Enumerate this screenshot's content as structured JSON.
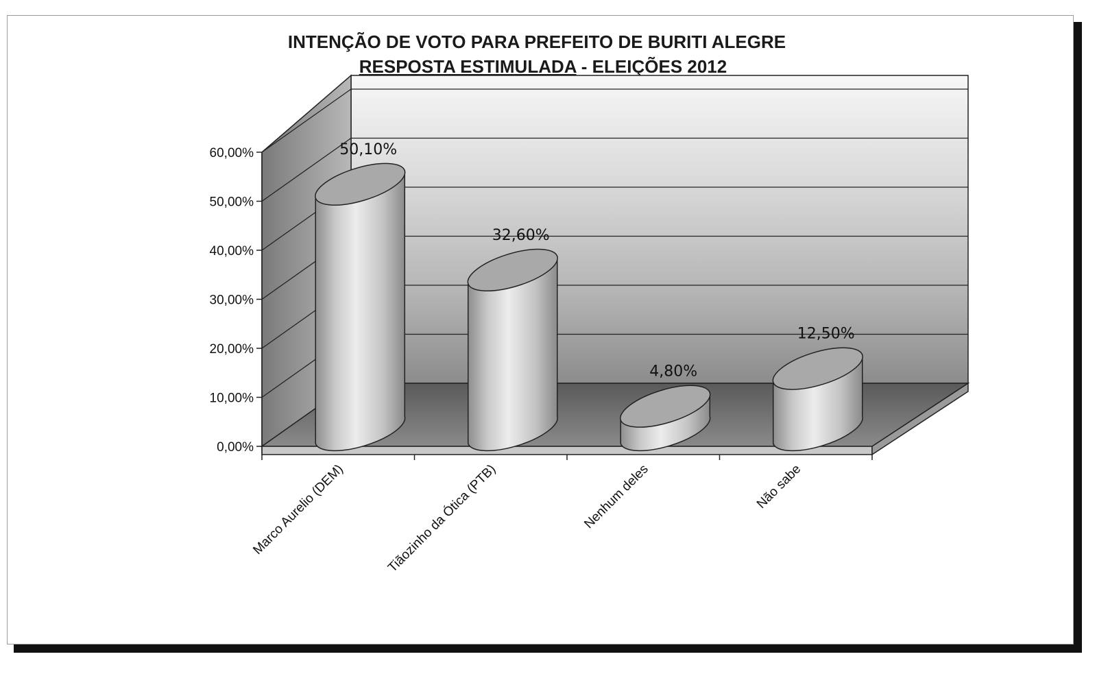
{
  "chart_data": {
    "type": "bar",
    "title": "INTENÇÃO DE VOTO PARA PREFEITO DE  BURITI ALEGRE",
    "subtitle_underlined": "RESPOSTA ESTIMULADA",
    "subtitle_rest": " - ELEIÇÕES 2012",
    "categories": [
      "Marco Aurelio (DEM)",
      "Tiãozinho da Ótica (PTB)",
      "Nenhum deles",
      "Não sabe"
    ],
    "values": [
      50.1,
      32.6,
      4.8,
      12.5
    ],
    "data_labels": [
      "50,10%",
      "32,60%",
      "4,80%",
      "12,50%"
    ],
    "yticks": [
      0,
      10,
      20,
      30,
      40,
      50,
      60
    ],
    "ytick_labels": [
      "0,00%",
      "10,00%",
      "20,00%",
      "30,00%",
      "40,00%",
      "50,00%",
      "60,00%"
    ],
    "ylim": [
      0,
      60
    ],
    "bar_shape": "3d-cylinder",
    "xlabel": "",
    "ylabel": "",
    "grid": true,
    "legend": "none"
  }
}
